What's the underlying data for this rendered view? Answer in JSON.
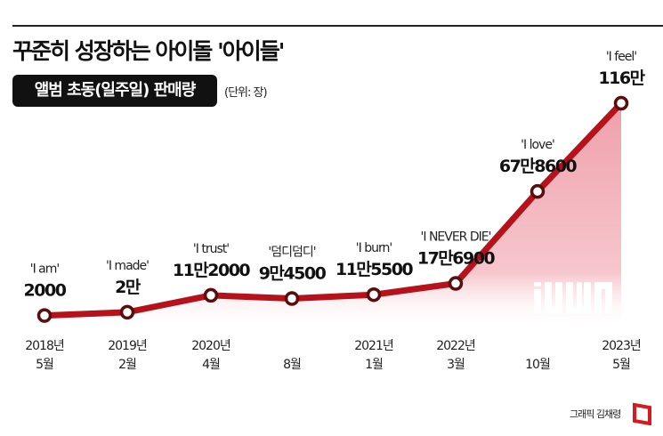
{
  "title": "꾸준히 성장하는 아이돌 '아이들'",
  "subtitle": "앨범 초동(일주일) 판매량",
  "unit": "(단위: 장)",
  "credit": "그래픽 김채령",
  "logo_text": "i-dle",
  "colors": {
    "line": "#b5121b",
    "marker_fill": "#ffffff",
    "marker_stroke": "#5a0d0d",
    "area": "#f0a7b0"
  },
  "chart_data": {
    "type": "line",
    "title": "꾸준히 성장하는 아이돌 '아이들'",
    "ylabel": "앨범 초동(일주일) 판매량 (단위: 장)",
    "grid": false,
    "points": [
      {
        "x_top": "2018년",
        "x_bottom": "5월",
        "album": "'I am'",
        "label": "2000",
        "value": 2000
      },
      {
        "x_top": "2019년",
        "x_bottom": "2월",
        "album": "'I made'",
        "label": "2만",
        "value": 20000
      },
      {
        "x_top": "2020년",
        "x_bottom": "4월",
        "album": "'I trust'",
        "label": "11만2000",
        "value": 112000
      },
      {
        "x_top": "",
        "x_bottom": "8월",
        "album": "'덤디덤디'",
        "label": "9만4500",
        "value": 94500
      },
      {
        "x_top": "2021년",
        "x_bottom": "1월",
        "album": "'I burn'",
        "label": "11만5500",
        "value": 115500
      },
      {
        "x_top": "2022년",
        "x_bottom": "3월",
        "album": "'I NEVER DIE'",
        "label": "17만6900",
        "value": 176900
      },
      {
        "x_top": "",
        "x_bottom": "10월",
        "album": "'I love'",
        "label": "67만8600",
        "value": 678600
      },
      {
        "x_top": "2023년",
        "x_bottom": "5월",
        "album": "'I feel'",
        "label": "116만",
        "value": 1160000
      }
    ]
  }
}
